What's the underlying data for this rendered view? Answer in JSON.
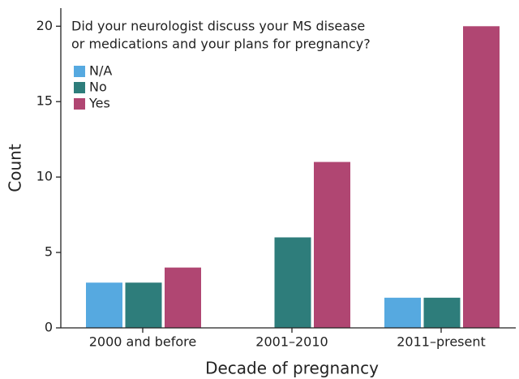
{
  "chart_data": {
    "type": "bar",
    "legend_title": [
      "Did your neurologist discuss your MS disease",
      "or medications and your plans for pregnancy?"
    ],
    "x_label": "Decade of pregnancy",
    "y_label": "Count",
    "categories": [
      "2000 and before",
      "2001–2010",
      "2011–present"
    ],
    "series": [
      {
        "name": "N/A",
        "color": "#56a9e0",
        "values": [
          3,
          0,
          2
        ]
      },
      {
        "name": "No",
        "color": "#2e7d7b",
        "values": [
          3,
          6,
          2
        ]
      },
      {
        "name": "Yes",
        "color": "#b04672",
        "values": [
          4,
          11,
          20
        ]
      }
    ],
    "ylim": [
      0,
      21.2
    ],
    "yticks": [
      0,
      5,
      10,
      15,
      20
    ],
    "legend": "upper left"
  }
}
